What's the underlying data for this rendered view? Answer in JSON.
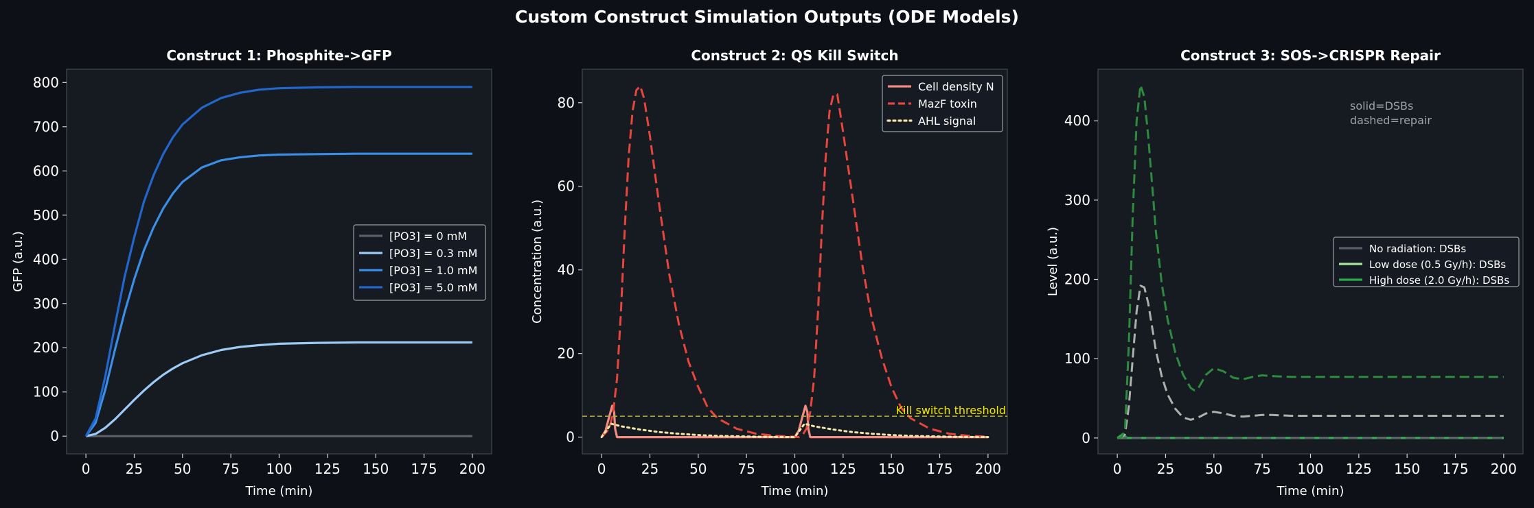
{
  "figure_title": "Custom Construct Simulation Outputs (ODE Models)",
  "colors": {
    "background": "#0d1117",
    "panel": "#161b22",
    "spine": "#3a3f46",
    "text": "#ffffff"
  },
  "chart_data": [
    {
      "type": "line",
      "title": "Construct 1: Phosphite->GFP",
      "xlabel": "Time (min)",
      "ylabel": "GFP (a.u.)",
      "xlim": [
        -10,
        210
      ],
      "ylim": [
        -40,
        830
      ],
      "xticks": [
        0,
        25,
        50,
        75,
        100,
        125,
        150,
        175,
        200
      ],
      "yticks": [
        0,
        100,
        200,
        300,
        400,
        500,
        600,
        700,
        800
      ],
      "legend_position": "center-right",
      "series": [
        {
          "name": "[PO3] = 0 mM",
          "color": "#5c6066",
          "style": "solid",
          "x": [
            0,
            200
          ],
          "y": [
            0,
            0
          ]
        },
        {
          "name": "[PO3] = 0.3 mM",
          "color": "#9ecbf5",
          "style": "solid",
          "x": [
            0,
            5,
            10,
            15,
            20,
            25,
            30,
            35,
            40,
            45,
            50,
            60,
            70,
            80,
            90,
            100,
            120,
            140,
            160,
            180,
            200
          ],
          "y": [
            0,
            5,
            19,
            38,
            60,
            82,
            103,
            122,
            139,
            153,
            165,
            183,
            195,
            202,
            206,
            209,
            211,
            212,
            212,
            212,
            212
          ]
        },
        {
          "name": "[PO3] = 1.0 mM",
          "color": "#3a8ee6",
          "style": "solid",
          "x": [
            0,
            5,
            10,
            15,
            20,
            25,
            30,
            35,
            40,
            45,
            50,
            60,
            70,
            80,
            90,
            100,
            120,
            140,
            160,
            180,
            200
          ],
          "y": [
            0,
            30,
            105,
            195,
            280,
            355,
            420,
            472,
            515,
            549,
            575,
            608,
            624,
            631,
            635,
            637,
            638,
            639,
            639,
            639,
            639
          ]
        },
        {
          "name": "[PO3] = 5.0 mM",
          "color": "#2266cc",
          "style": "solid",
          "x": [
            0,
            5,
            10,
            15,
            20,
            25,
            30,
            35,
            40,
            45,
            50,
            60,
            70,
            80,
            90,
            100,
            120,
            140,
            160,
            180,
            200
          ],
          "y": [
            0,
            40,
            135,
            250,
            360,
            450,
            530,
            590,
            638,
            676,
            705,
            743,
            765,
            777,
            784,
            787,
            789,
            790,
            790,
            790,
            790
          ]
        }
      ]
    },
    {
      "type": "line",
      "title": "Construct 2: QS Kill Switch",
      "xlabel": "Time (min)",
      "ylabel": "Concentration (a.u.)",
      "xlim": [
        -10,
        210
      ],
      "ylim": [
        -4,
        88
      ],
      "xticks": [
        0,
        25,
        50,
        75,
        100,
        125,
        150,
        175,
        200
      ],
      "yticks": [
        0,
        20,
        40,
        60,
        80
      ],
      "legend_position": "top-right",
      "threshold": {
        "label": "Kill switch threshold",
        "value": 5,
        "color": "#b8b43a"
      },
      "series": [
        {
          "name": "Cell density N",
          "color": "#f28b82",
          "style": "solid",
          "x": [
            0,
            2,
            4,
            5.5,
            6.5,
            7,
            8,
            100,
            102,
            104,
            105.5,
            106.5,
            107,
            108,
            200
          ],
          "y": [
            0,
            1.5,
            5,
            7.5,
            6,
            2,
            0,
            0,
            1.5,
            5,
            7.5,
            6,
            2,
            0,
            0
          ]
        },
        {
          "name": "MazF toxin",
          "color": "#e8453c",
          "style": "dashed",
          "x": [
            0,
            4,
            6,
            8,
            10,
            12,
            14,
            16,
            18,
            20,
            22,
            25,
            30,
            35,
            40,
            45,
            50,
            55,
            60,
            70,
            80,
            90,
            100,
            102,
            104,
            106,
            108,
            110,
            112,
            114,
            116,
            118,
            120,
            122,
            125,
            130,
            135,
            140,
            145,
            150,
            155,
            160,
            170,
            180,
            190,
            200
          ],
          "y": [
            0,
            2,
            6,
            14,
            30,
            50,
            67,
            78,
            83,
            84,
            81,
            72,
            55,
            39,
            27,
            18,
            12,
            7,
            4.5,
            2,
            0.8,
            0.3,
            0.1,
            0,
            0.5,
            2,
            6,
            14,
            30,
            50,
            67,
            78,
            82,
            82,
            73,
            57,
            41,
            28,
            19,
            12,
            7,
            4.5,
            2,
            0.8,
            0.3,
            0.1
          ]
        },
        {
          "name": "AHL signal",
          "color": "#f5e6a8",
          "style": "dotted",
          "x": [
            0,
            5,
            10,
            20,
            30,
            40,
            50,
            60,
            70,
            80,
            90,
            100,
            105,
            110,
            120,
            130,
            140,
            150,
            160,
            170,
            180,
            190,
            200
          ],
          "y": [
            0,
            3.2,
            2.6,
            1.8,
            1.2,
            0.8,
            0.5,
            0.3,
            0.2,
            0.1,
            0.05,
            0,
            3.2,
            2.6,
            1.8,
            1.2,
            0.8,
            0.5,
            0.3,
            0.2,
            0.1,
            0.05,
            0
          ]
        }
      ]
    },
    {
      "type": "line",
      "title": "Construct 3: SOS->CRISPR Repair",
      "xlabel": "Time (min)",
      "ylabel": "Level (a.u.)",
      "xlim": [
        -10,
        210
      ],
      "ylim": [
        -20,
        465
      ],
      "xticks": [
        0,
        25,
        50,
        75,
        100,
        125,
        150,
        175,
        200
      ],
      "yticks": [
        0,
        100,
        200,
        300,
        400
      ],
      "legend_position": "center-right",
      "annotation": [
        "solid=DSBs",
        "dashed=repair"
      ],
      "legend_entries": [
        {
          "name": "No radiation: DSBs",
          "color": "#5c6066"
        },
        {
          "name": "Low dose (0.5 Gy/h): DSBs",
          "color": "#a7e59f"
        },
        {
          "name": "High dose (2.0 Gy/h): DSBs",
          "color": "#2fa84f"
        }
      ],
      "series": [
        {
          "color": "#5c6066",
          "style": "solid",
          "x": [
            0,
            200
          ],
          "y": [
            0,
            0
          ]
        },
        {
          "color": "#a7e59f",
          "style": "solid",
          "x": [
            0,
            200
          ],
          "y": [
            0,
            0
          ]
        },
        {
          "color": "#2fa84f",
          "style": "solid",
          "x": [
            0,
            3,
            5,
            200
          ],
          "y": [
            0,
            5,
            0,
            0
          ]
        },
        {
          "color": "#5c6066",
          "style": "dashed",
          "x": [
            0,
            200
          ],
          "y": [
            0,
            0
          ]
        },
        {
          "color": "#a9b3ab",
          "style": "dashed",
          "x": [
            0,
            2,
            4,
            6,
            8,
            10,
            12,
            14,
            16,
            18,
            20,
            23,
            26,
            30,
            34,
            38,
            42,
            46,
            50,
            55,
            60,
            65,
            70,
            75,
            80,
            90,
            100,
            125,
            150,
            175,
            200
          ],
          "y": [
            0,
            0,
            5,
            40,
            100,
            160,
            192,
            190,
            170,
            140,
            110,
            78,
            55,
            37,
            26,
            23,
            26,
            31,
            33,
            31,
            28,
            27,
            28,
            29,
            29,
            28,
            28,
            28,
            28,
            28,
            28
          ]
        },
        {
          "color": "#2e8b3e",
          "style": "dashed",
          "x": [
            0,
            2,
            4,
            6,
            8,
            10,
            12,
            14,
            16,
            18,
            20,
            23,
            26,
            30,
            34,
            38,
            40,
            42,
            46,
            50,
            55,
            60,
            65,
            70,
            75,
            80,
            90,
            100,
            125,
            150,
            175,
            200
          ],
          "y": [
            0,
            0,
            10,
            120,
            280,
            400,
            445,
            430,
            380,
            320,
            260,
            195,
            150,
            108,
            80,
            63,
            60,
            63,
            80,
            88,
            84,
            76,
            74,
            77,
            79,
            78,
            77,
            77,
            77,
            77,
            77,
            77
          ]
        }
      ]
    }
  ]
}
